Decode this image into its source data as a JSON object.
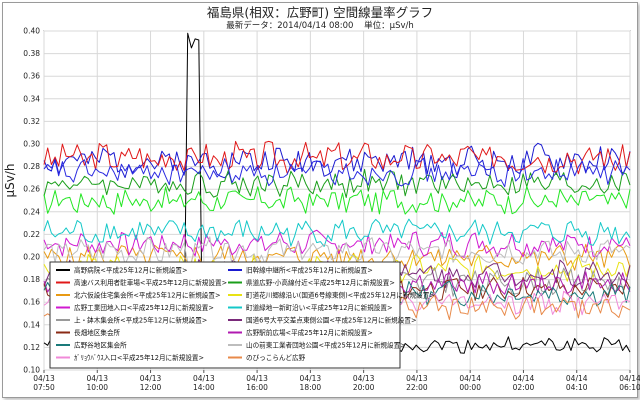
{
  "chart_data": {
    "type": "line",
    "title": "福島県(相双：広野町) 空間線量率グラフ",
    "subtitle_date": "最新データ：2014/04/14 08:00",
    "subtitle_unit": "単位：μSv/h",
    "ylabel": "μSv/h",
    "ylim": [
      0.1,
      0.4
    ],
    "yticks": [
      "0.10",
      "0.12",
      "0.14",
      "0.16",
      "0.18",
      "0.20",
      "0.22",
      "0.24",
      "0.26",
      "0.28",
      "0.30",
      "0.32",
      "0.34",
      "0.36",
      "0.38",
      "0.40"
    ],
    "grid": true,
    "legend_position": "lower-left inside plot",
    "x_ticks": [
      {
        "date": "04/13",
        "time": "07:50"
      },
      {
        "date": "04/13",
        "time": "10:00"
      },
      {
        "date": "04/13",
        "time": "12:00"
      },
      {
        "date": "04/13",
        "time": "14:00"
      },
      {
        "date": "04/13",
        "time": "16:00"
      },
      {
        "date": "04/13",
        "time": "18:00"
      },
      {
        "date": "04/13",
        "time": "20:00"
      },
      {
        "date": "04/13",
        "time": "22:00"
      },
      {
        "date": "04/14",
        "time": "00:00"
      },
      {
        "date": "04/14",
        "time": "02:00"
      },
      {
        "date": "04/14",
        "time": "04:10"
      },
      {
        "date": "04/14",
        "time": "06:10"
      }
    ],
    "series": [
      {
        "name": "高野病院<平成25年12月に新規設置>",
        "color": "#000000",
        "base": 0.122,
        "amp": 0.006,
        "seed": 1,
        "spike": true
      },
      {
        "name": "旧幹線中継所<平成25年12月に新規設置>",
        "color": "#1a1ad0",
        "base": 0.285,
        "amp": 0.012,
        "seed": 2
      },
      {
        "name": "高速バス利用者駐車場<平成25年12月に新規設置>",
        "color": "#e01818",
        "base": 0.288,
        "amp": 0.012,
        "seed": 3
      },
      {
        "name": "県道広野-小高線付近<平成25年12月に新規設置>",
        "color": "#1a9e1a",
        "base": 0.265,
        "amp": 0.01,
        "seed": 4
      },
      {
        "name": "北六仮設住宅集会所<平成25年12月に新規設置>",
        "color": "#e89a14",
        "base": 0.2,
        "amp": 0.01,
        "seed": 5
      },
      {
        "name": "町道花川郷線沿い(国道6号線東側)<平成25年12月に新規設置>",
        "color": "#e8e214",
        "base": 0.19,
        "amp": 0.01,
        "seed": 6
      },
      {
        "name": "広野工業団地入口<平成25年12月に新規設置>",
        "color": "#d01ad0",
        "base": 0.212,
        "amp": 0.01,
        "seed": 7
      },
      {
        "name": "町道緑地一新町沿い<平成25年12月に新規設置>",
        "color": "#14c8c8",
        "base": 0.222,
        "amp": 0.01,
        "seed": 8
      },
      {
        "name": "上・鉢木集会所<平成25年12月に新規設置>",
        "color": "#9a9a9a",
        "base": 0.178,
        "amp": 0.01,
        "seed": 9
      },
      {
        "name": "国道6号大平交差点東側公園<平成25年12月に新規設置>",
        "color": "#7a2a7a",
        "base": 0.185,
        "amp": 0.01,
        "seed": 10
      },
      {
        "name": "長畑地区集会所",
        "color": "#8a2a14",
        "base": 0.172,
        "amp": 0.009,
        "seed": 11
      },
      {
        "name": "広野駅前広場<平成25年12月に新規設置>",
        "color": "#b01ab0",
        "base": 0.176,
        "amp": 0.009,
        "seed": 12
      },
      {
        "name": "広野谷地区集会所",
        "color": "#1a7a7a",
        "base": 0.168,
        "amp": 0.009,
        "seed": 13
      },
      {
        "name": "山の前東工業者団地公園<平成25年12月に新規設置>",
        "color": "#bdbdbd",
        "base": 0.205,
        "amp": 0.01,
        "seed": 14
      },
      {
        "name": "ｶﾞﾘｮｳﾊﾞｳｽ入口<平成25年12月に新規設置>",
        "color": "#f08ad8",
        "base": 0.16,
        "amp": 0.009,
        "seed": 15
      },
      {
        "name": "のびっこらんど広野",
        "color": "#e88a4a",
        "base": 0.156,
        "amp": 0.009,
        "seed": 16
      },
      {
        "name": "",
        "color": "#22e622",
        "base": 0.25,
        "amp": 0.01,
        "seed": 17
      },
      {
        "name": "",
        "color": "#2a2ae0",
        "base": 0.275,
        "amp": 0.01,
        "seed": 18
      }
    ]
  }
}
